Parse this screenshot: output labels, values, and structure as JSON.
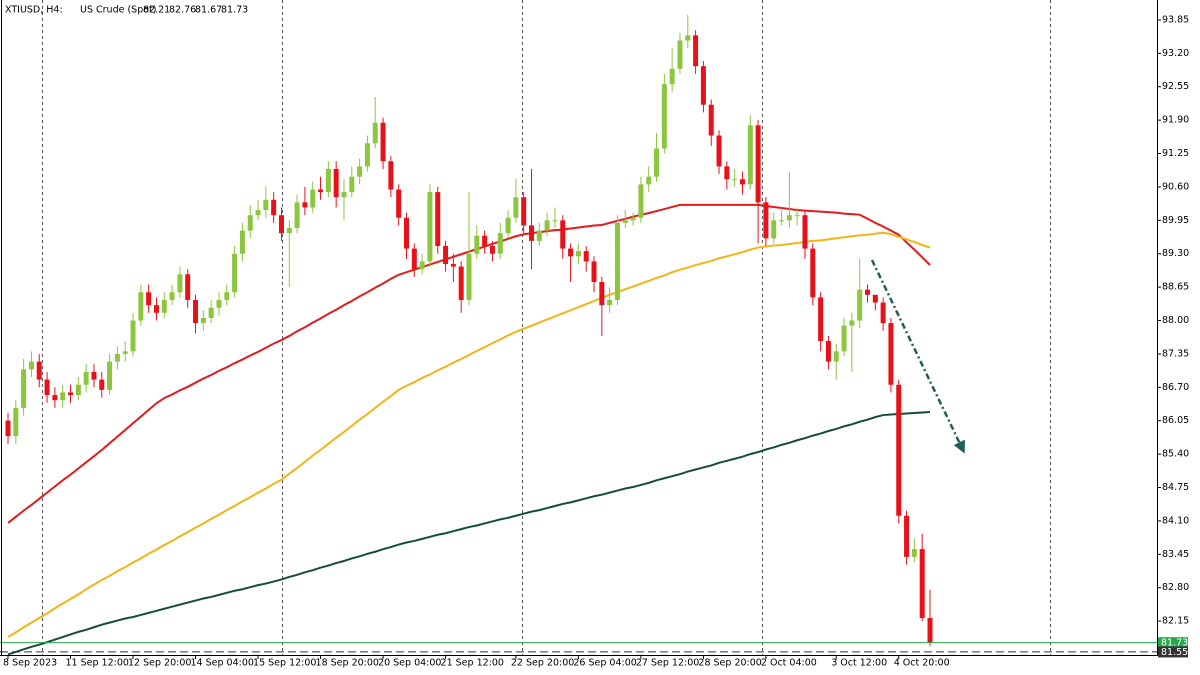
{
  "chart_data": {
    "type": "candlestick",
    "symbol": "XTIUSD, H4:",
    "title": "US Crude (Spot)",
    "up_color": "#8cc63f",
    "down_color": "#e8111a",
    "ylim": [
      81.49,
      94.18
    ],
    "yticks": [
      93.85,
      {
        "value": 93.2,
        "label": "93.20"
      },
      92.55,
      {
        "value": 91.9,
        "label": "91.90"
      },
      91.25,
      {
        "value": 90.6,
        "label": "90.60"
      },
      89.95,
      {
        "value": 89.3,
        "label": "89.30"
      },
      88.65,
      {
        "value": 88,
        "label": "88.00"
      },
      87.35,
      {
        "value": 86.7,
        "label": "86.70"
      },
      86.05,
      {
        "value": 85.4,
        "label": "85.40"
      },
      84.75,
      {
        "value": 84.1,
        "label": "84.10"
      },
      83.45,
      {
        "value": 82.8,
        "label": "82.80"
      },
      82.15
    ],
    "price_lines": [
      {
        "value": 81.73,
        "color": "#27a84a"
      },
      {
        "value": 81.55,
        "color": "#333333"
      }
    ],
    "categories": [
      "8 Sep 2023",
      null,
      null,
      null,
      null,
      null,
      null,
      null,
      "11 Sep 12:00",
      null,
      null,
      null,
      null,
      null,
      null,
      null,
      "12 Sep 20:00",
      null,
      null,
      null,
      null,
      null,
      null,
      null,
      "14 Sep 04:00",
      null,
      null,
      null,
      null,
      null,
      null,
      null,
      "15 Sep 12:00",
      null,
      null,
      null,
      null,
      null,
      null,
      null,
      "18 Sep 20:00",
      null,
      null,
      null,
      null,
      null,
      null,
      null,
      "20 Sep 04:00",
      null,
      null,
      null,
      null,
      null,
      null,
      null,
      "21 Sep 12:00",
      null,
      null,
      null,
      null,
      null,
      null,
      null,
      null,
      "22 Sep 20:00",
      null,
      null,
      null,
      null,
      null,
      null,
      null,
      "26 Sep 04:00",
      null,
      null,
      null,
      null,
      null,
      null,
      null,
      "27 Sep 12:00",
      null,
      null,
      null,
      null,
      null,
      null,
      null,
      "28 Sep 20:00",
      null,
      null,
      null,
      null,
      null,
      null,
      null,
      "2 Oct 04:00",
      null,
      null,
      null,
      null,
      null,
      null,
      null,
      null,
      "3 Oct 12:00",
      null,
      null,
      null,
      null,
      null,
      null,
      null,
      "4 Oct 20:00",
      null,
      null,
      null,
      null
    ],
    "open": [
      86.05,
      85.75,
      86.3,
      87.05,
      87.2,
      86.85,
      86.55,
      86.45,
      86.6,
      86.55,
      86.75,
      87.0,
      86.85,
      86.65,
      87.2,
      87.35,
      87.4,
      88.0,
      88.55,
      88.3,
      88.15,
      88.4,
      88.55,
      88.9,
      88.4,
      87.95,
      88.05,
      88.25,
      88.4,
      88.55,
      89.3,
      89.75,
      90.05,
      90.15,
      90.35,
      90.05,
      89.7,
      89.8,
      90.3,
      90.2,
      90.55,
      90.5,
      90.95,
      90.4,
      90.5,
      90.8,
      91.0,
      91.45,
      91.85,
      91.1,
      90.55,
      90.0,
      89.4,
      89.0,
      89.15,
      90.5,
      89.45,
      89.1,
      89.05,
      88.4,
      89.3,
      89.65,
      89.45,
      89.3,
      89.7,
      90.0,
      90.4,
      89.85,
      89.55,
      89.75,
      89.95,
      89.95,
      89.4,
      89.25,
      89.35,
      89.15,
      88.75,
      88.3,
      88.4,
      89.9,
      89.95,
      90.0,
      90.65,
      90.8,
      91.35,
      92.6,
      92.9,
      93.45,
      93.55,
      92.95,
      92.2,
      91.6,
      91.0,
      90.75,
      90.75,
      90.65,
      91.8,
      90.3,
      89.6,
      89.95,
      89.95,
      90.05,
      90.05,
      89.4,
      88.45,
      87.6,
      87.2,
      87.4,
      87.9,
      88.0,
      88.6,
      88.5,
      88.35,
      87.95,
      86.75,
      84.2,
      83.4,
      83.55,
      82.21
    ],
    "high": [
      86.2,
      86.45,
      87.25,
      87.4,
      87.35,
      87.0,
      86.7,
      86.75,
      86.75,
      86.9,
      87.15,
      87.15,
      87.0,
      87.35,
      87.5,
      87.6,
      88.15,
      88.7,
      88.7,
      88.45,
      88.55,
      88.7,
      89.05,
      89.0,
      88.5,
      88.2,
      88.4,
      88.55,
      88.7,
      89.45,
      89.9,
      90.25,
      90.35,
      90.6,
      90.5,
      90.2,
      89.95,
      90.45,
      90.6,
      90.7,
      90.8,
      91.1,
      91.1,
      90.75,
      91.0,
      91.15,
      91.6,
      92.35,
      91.95,
      91.2,
      90.65,
      90.1,
      89.5,
      89.3,
      90.65,
      90.6,
      89.55,
      89.3,
      89.15,
      90.5,
      89.85,
      89.75,
      89.55,
      89.9,
      90.15,
      90.75,
      90.5,
      90.95,
      89.9,
      90.1,
      90.2,
      90.05,
      89.5,
      89.5,
      89.45,
      89.25,
      88.85,
      88.65,
      90.05,
      90.15,
      90.1,
      90.8,
      91.0,
      91.65,
      92.8,
      93.3,
      93.6,
      93.95,
      93.65,
      93.05,
      92.3,
      91.7,
      91.1,
      90.95,
      90.9,
      92.0,
      91.9,
      90.4,
      90.1,
      90.15,
      90.9,
      90.2,
      90.15,
      89.5,
      88.55,
      87.7,
      87.55,
      88.05,
      88.15,
      89.2,
      88.7,
      88.5,
      88.45,
      88.05,
      86.85,
      84.3,
      83.75,
      83.85,
      82.76
    ],
    "low": [
      85.6,
      85.6,
      86.15,
      86.9,
      86.7,
      86.4,
      86.3,
      86.3,
      86.4,
      86.45,
      86.6,
      86.7,
      86.5,
      86.55,
      87.05,
      87.2,
      87.3,
      87.9,
      88.15,
      88.0,
      88.05,
      88.3,
      88.45,
      88.25,
      87.75,
      87.8,
      87.95,
      88.1,
      88.3,
      88.45,
      89.15,
      89.6,
      89.95,
      90.0,
      89.9,
      89.55,
      88.65,
      89.7,
      90.05,
      90.1,
      90.35,
      90.4,
      90.2,
      89.95,
      90.4,
      90.65,
      90.9,
      91.35,
      90.95,
      90.4,
      89.85,
      89.2,
      88.85,
      88.9,
      89.05,
      89.3,
      88.95,
      88.75,
      88.15,
      88.3,
      89.2,
      89.3,
      89.15,
      89.2,
      89.6,
      89.9,
      89.7,
      89.0,
      89.45,
      89.65,
      89.8,
      89.2,
      88.75,
      89.1,
      88.95,
      88.55,
      87.7,
      88.15,
      88.3,
      89.8,
      89.85,
      89.9,
      90.5,
      90.7,
      91.25,
      92.45,
      92.8,
      93.3,
      92.8,
      92.05,
      91.4,
      90.85,
      90.55,
      90.6,
      90.45,
      90.55,
      89.5,
      89.45,
      89.5,
      89.85,
      89.8,
      89.85,
      89.2,
      88.3,
      87.4,
      87.05,
      86.85,
      87.3,
      87.0,
      87.85,
      88.35,
      88.2,
      87.8,
      86.6,
      84.05,
      83.25,
      83.3,
      82.15,
      81.67
    ],
    "close": [
      85.75,
      86.3,
      87.05,
      87.2,
      86.85,
      86.55,
      86.45,
      86.6,
      86.55,
      86.75,
      87.0,
      86.85,
      86.65,
      87.2,
      87.35,
      87.4,
      88.0,
      88.55,
      88.3,
      88.15,
      88.4,
      88.55,
      88.9,
      88.4,
      87.95,
      88.05,
      88.25,
      88.4,
      88.55,
      89.3,
      89.75,
      90.05,
      90.15,
      90.35,
      90.05,
      89.7,
      89.8,
      90.3,
      90.2,
      90.55,
      90.5,
      90.95,
      90.4,
      90.5,
      90.8,
      91.0,
      91.45,
      91.85,
      91.1,
      90.55,
      90.0,
      89.4,
      89.0,
      89.15,
      90.5,
      89.45,
      89.1,
      89.05,
      88.4,
      89.3,
      89.65,
      89.45,
      89.3,
      89.7,
      90.0,
      90.4,
      89.85,
      89.55,
      89.75,
      89.95,
      89.95,
      89.4,
      89.25,
      89.35,
      89.15,
      88.75,
      88.3,
      88.4,
      89.9,
      89.95,
      90.0,
      90.65,
      90.8,
      91.35,
      92.6,
      92.9,
      93.45,
      93.55,
      92.95,
      92.2,
      91.6,
      91.0,
      90.75,
      90.75,
      90.65,
      91.8,
      90.3,
      89.6,
      89.95,
      89.95,
      90.05,
      90.05,
      89.4,
      88.45,
      87.6,
      87.2,
      87.4,
      87.9,
      88.0,
      88.6,
      88.5,
      88.35,
      87.95,
      86.75,
      84.2,
      83.4,
      83.55,
      82.21,
      81.73
    ],
    "series": [
      {
        "color": "#e31a1c",
        "values": [
          84.06,
          84.18,
          84.3,
          84.41,
          84.53,
          84.65,
          84.77,
          84.89,
          85.0,
          85.12,
          85.24,
          85.36,
          85.48,
          85.61,
          85.74,
          85.87,
          86.0,
          86.13,
          86.26,
          86.39,
          86.49,
          86.56,
          86.64,
          86.71,
          86.79,
          86.87,
          86.94,
          87.02,
          87.09,
          87.17,
          87.24,
          87.32,
          87.39,
          87.47,
          87.55,
          87.62,
          87.7,
          87.79,
          87.87,
          87.96,
          88.04,
          88.13,
          88.21,
          88.3,
          88.38,
          88.47,
          88.55,
          88.64,
          88.72,
          88.81,
          88.89,
          88.94,
          88.99,
          89.04,
          89.09,
          89.14,
          89.19,
          89.24,
          89.29,
          89.34,
          89.39,
          89.44,
          89.49,
          89.54,
          89.59,
          89.64,
          89.68,
          89.7,
          89.72,
          89.74,
          89.76,
          89.77,
          89.79,
          89.81,
          89.83,
          89.85,
          89.86,
          89.9,
          89.94,
          89.98,
          90.02,
          90.06,
          90.09,
          90.13,
          90.17,
          90.21,
          90.25,
          90.25,
          90.25,
          90.25,
          90.25,
          90.25,
          90.25,
          90.25,
          90.25,
          90.25,
          90.25,
          90.23,
          90.21,
          90.19,
          90.17,
          90.15,
          90.14,
          90.13,
          90.12,
          90.11,
          90.1,
          90.08,
          90.07,
          90.06,
          89.98,
          89.9,
          89.83,
          89.75,
          89.67,
          89.52,
          89.38,
          89.23,
          89.08
        ]
      },
      {
        "color": "#f5b316",
        "values": [
          81.84,
          81.93,
          82.03,
          82.12,
          82.21,
          82.3,
          82.4,
          82.49,
          82.58,
          82.67,
          82.77,
          82.86,
          82.95,
          83.03,
          83.12,
          83.2,
          83.29,
          83.37,
          83.46,
          83.54,
          83.63,
          83.71,
          83.8,
          83.88,
          83.97,
          84.05,
          84.14,
          84.22,
          84.31,
          84.39,
          84.48,
          84.56,
          84.65,
          84.73,
          84.82,
          84.9,
          85.02,
          85.13,
          85.25,
          85.37,
          85.48,
          85.6,
          85.72,
          85.83,
          85.95,
          86.07,
          86.18,
          86.3,
          86.42,
          86.53,
          86.65,
          86.73,
          86.8,
          86.88,
          86.95,
          87.03,
          87.1,
          87.18,
          87.25,
          87.33,
          87.41,
          87.48,
          87.56,
          87.63,
          87.71,
          87.78,
          87.84,
          87.9,
          87.96,
          88.02,
          88.08,
          88.14,
          88.2,
          88.26,
          88.32,
          88.38,
          88.44,
          88.5,
          88.55,
          88.61,
          88.66,
          88.72,
          88.77,
          88.83,
          88.88,
          88.94,
          88.99,
          89.03,
          89.08,
          89.12,
          89.16,
          89.21,
          89.25,
          89.29,
          89.33,
          89.38,
          89.42,
          89.44,
          89.46,
          89.47,
          89.49,
          89.51,
          89.53,
          89.55,
          89.56,
          89.58,
          89.6,
          89.62,
          89.64,
          89.66,
          89.67,
          89.69,
          89.71,
          89.68,
          89.63,
          89.58,
          89.53,
          89.47,
          89.42
        ]
      },
      {
        "color": "#144d3f",
        "values": [
          81.5,
          81.55,
          81.6,
          81.65,
          81.69,
          81.74,
          81.79,
          81.84,
          81.89,
          81.94,
          81.98,
          82.03,
          82.08,
          82.12,
          82.16,
          82.2,
          82.23,
          82.27,
          82.31,
          82.35,
          82.39,
          82.43,
          82.47,
          82.51,
          82.55,
          82.59,
          82.62,
          82.66,
          82.7,
          82.74,
          82.77,
          82.81,
          82.85,
          82.88,
          82.92,
          82.96,
          83.01,
          83.05,
          83.1,
          83.14,
          83.19,
          83.23,
          83.28,
          83.32,
          83.37,
          83.41,
          83.46,
          83.5,
          83.55,
          83.59,
          83.64,
          83.68,
          83.71,
          83.75,
          83.79,
          83.83,
          83.86,
          83.9,
          83.94,
          83.98,
          84.01,
          84.05,
          84.09,
          84.13,
          84.16,
          84.2,
          84.24,
          84.28,
          84.31,
          84.35,
          84.39,
          84.43,
          84.46,
          84.5,
          84.54,
          84.58,
          84.61,
          84.65,
          84.69,
          84.73,
          84.76,
          84.8,
          84.84,
          84.89,
          84.93,
          84.97,
          85.01,
          85.06,
          85.1,
          85.14,
          85.18,
          85.23,
          85.27,
          85.31,
          85.35,
          85.4,
          85.44,
          85.49,
          85.53,
          85.58,
          85.62,
          85.67,
          85.71,
          85.76,
          85.8,
          85.85,
          85.89,
          85.94,
          85.98,
          86.03,
          86.07,
          86.12,
          86.16,
          86.17,
          86.18,
          86.19,
          86.2,
          86.21,
          86.22
        ]
      }
    ]
  }
}
